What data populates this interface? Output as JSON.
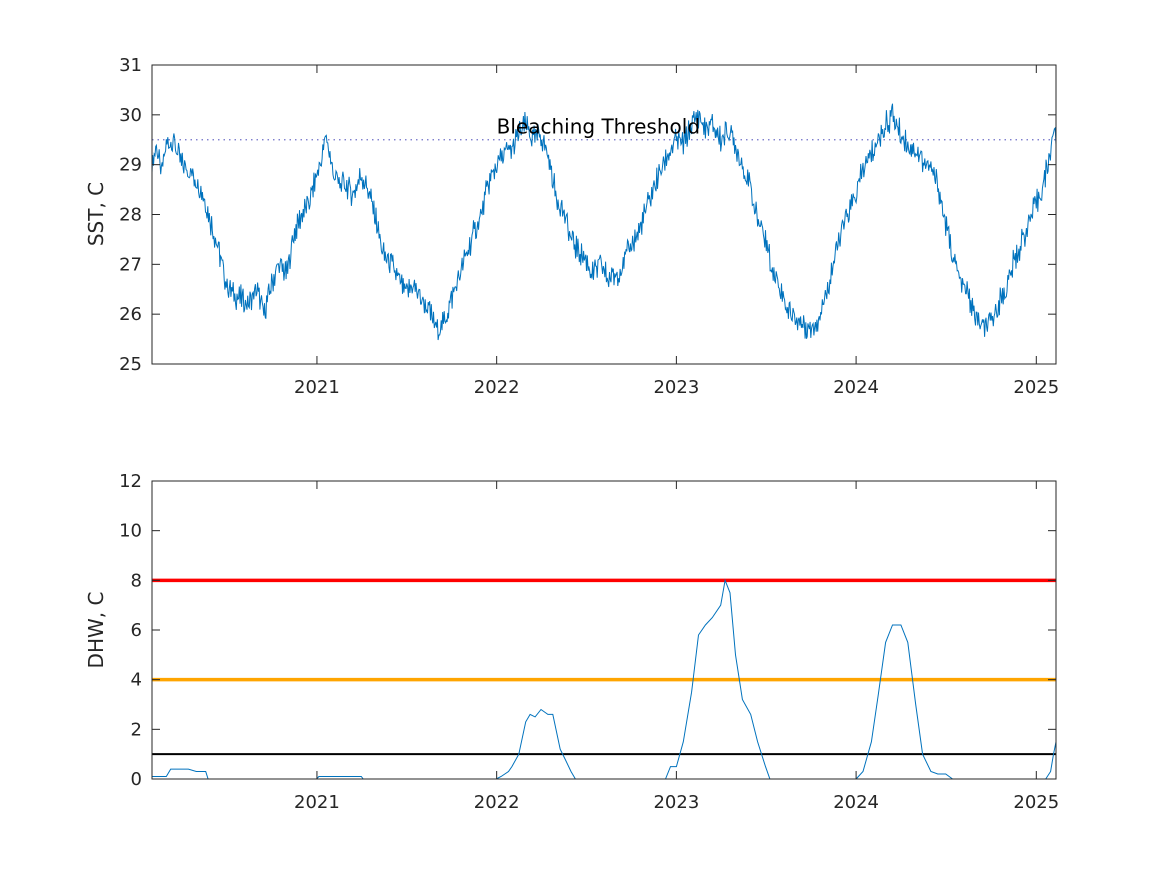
{
  "chart_data": [
    {
      "type": "line",
      "ylabel": "SST, C",
      "xlabel": "",
      "ylim": [
        25,
        31
      ],
      "xlim": [
        "2020-02-01",
        "2025-02-10"
      ],
      "x_ticks": [
        "2021",
        "2022",
        "2023",
        "2024",
        "2025"
      ],
      "y_ticks": [
        "25",
        "26",
        "27",
        "28",
        "29",
        "30",
        "31"
      ],
      "grid": false,
      "colors": {
        "series": "#0072BD",
        "threshold": "#6f6fc8"
      },
      "annotations": [
        {
          "text": "Bleaching Threshold",
          "x": "2022-01-01",
          "y": 29.75
        }
      ],
      "threshold": {
        "value": 29.5,
        "style": "dotted"
      },
      "series": [
        {
          "x": [
            "2020-02-01",
            "2020-02-10",
            "2020-02-20",
            "2020-03-01",
            "2020-03-15",
            "2020-04-01",
            "2020-04-15",
            "2020-05-01",
            "2020-05-15",
            "2020-06-01",
            "2020-06-15",
            "2020-07-01",
            "2020-07-15",
            "2020-08-01",
            "2020-08-15",
            "2020-09-01",
            "2020-09-15",
            "2020-10-01",
            "2020-10-15",
            "2020-11-01",
            "2020-11-15",
            "2020-12-01",
            "2020-12-15",
            "2021-01-01",
            "2021-01-10",
            "2021-01-20",
            "2021-02-01",
            "2021-02-15",
            "2021-03-01",
            "2021-03-15",
            "2021-04-01",
            "2021-04-15",
            "2021-05-01",
            "2021-05-15",
            "2021-06-01",
            "2021-06-15",
            "2021-07-01",
            "2021-07-15",
            "2021-08-01",
            "2021-08-15",
            "2021-09-01",
            "2021-09-15",
            "2021-10-01",
            "2021-10-15",
            "2021-11-01",
            "2021-11-15",
            "2021-12-01",
            "2021-12-15",
            "2022-01-01",
            "2022-01-15",
            "2022-02-01",
            "2022-02-15",
            "2022-03-01",
            "2022-03-15",
            "2022-04-01",
            "2022-04-15",
            "2022-05-01",
            "2022-05-15",
            "2022-06-01",
            "2022-06-15",
            "2022-07-01",
            "2022-07-15",
            "2022-08-01",
            "2022-08-15",
            "2022-09-01",
            "2022-09-15",
            "2022-10-01",
            "2022-10-15",
            "2022-11-01",
            "2022-11-15",
            "2022-12-01",
            "2022-12-15",
            "2023-01-01",
            "2023-01-15",
            "2023-02-01",
            "2023-02-15",
            "2023-03-01",
            "2023-03-15",
            "2023-04-01",
            "2023-04-15",
            "2023-05-01",
            "2023-05-15",
            "2023-06-01",
            "2023-06-15",
            "2023-07-01",
            "2023-07-15",
            "2023-08-01",
            "2023-08-15",
            "2023-09-01",
            "2023-09-15",
            "2023-10-01",
            "2023-10-15",
            "2023-11-01",
            "2023-11-15",
            "2023-12-01",
            "2023-12-15",
            "2024-01-01",
            "2024-01-15",
            "2024-02-01",
            "2024-02-15",
            "2024-03-01",
            "2024-03-15",
            "2024-04-01",
            "2024-04-15",
            "2024-05-01",
            "2024-05-15",
            "2024-06-01",
            "2024-06-15",
            "2024-07-01",
            "2024-07-15",
            "2024-08-01",
            "2024-08-15",
            "2024-09-01",
            "2024-09-15",
            "2024-10-01",
            "2024-10-15",
            "2024-11-01",
            "2024-11-15",
            "2024-12-01",
            "2024-12-15",
            "2025-01-01",
            "2025-01-15",
            "2025-01-25",
            "2025-02-05",
            "2025-02-10"
          ],
          "y": [
            29.0,
            29.4,
            28.8,
            29.4,
            29.5,
            29.0,
            28.9,
            28.7,
            28.4,
            27.8,
            27.3,
            26.6,
            26.4,
            26.3,
            26.2,
            26.5,
            26.0,
            26.6,
            27.0,
            26.8,
            27.6,
            28.0,
            28.2,
            28.8,
            29.1,
            29.6,
            28.9,
            28.6,
            28.6,
            28.4,
            28.8,
            28.5,
            27.9,
            27.2,
            27.0,
            26.7,
            26.4,
            26.6,
            26.3,
            26.1,
            25.7,
            25.8,
            26.3,
            26.7,
            27.2,
            27.6,
            28.0,
            28.6,
            29.0,
            29.2,
            29.3,
            29.6,
            29.8,
            29.5,
            29.6,
            29.2,
            28.4,
            28.1,
            27.5,
            27.3,
            27.1,
            26.8,
            27.0,
            26.7,
            26.8,
            27.0,
            27.4,
            27.6,
            28.1,
            28.5,
            28.9,
            29.2,
            29.5,
            29.4,
            29.8,
            30.0,
            29.7,
            29.8,
            29.5,
            29.7,
            29.4,
            29.0,
            28.5,
            27.9,
            27.5,
            26.9,
            26.5,
            26.1,
            25.9,
            25.8,
            25.7,
            25.9,
            26.4,
            27.0,
            27.6,
            28.0,
            28.4,
            28.9,
            29.2,
            29.5,
            29.8,
            30.0,
            29.6,
            29.4,
            29.3,
            29.1,
            28.9,
            28.6,
            27.8,
            27.2,
            26.6,
            26.4,
            25.9,
            25.7,
            25.8,
            26.2,
            26.5,
            27.0,
            27.4,
            27.8,
            28.2,
            28.6,
            29.0,
            29.7,
            29.4
          ]
        }
      ]
    },
    {
      "type": "line",
      "ylabel": "DHW, C",
      "xlabel": "",
      "ylim": [
        0,
        12
      ],
      "xlim": [
        "2020-02-01",
        "2025-02-10"
      ],
      "x_ticks": [
        "2021",
        "2022",
        "2023",
        "2024",
        "2025"
      ],
      "y_ticks": [
        "0",
        "2",
        "4",
        "6",
        "8",
        "10",
        "12"
      ],
      "grid": false,
      "reference_lines": [
        {
          "value": 8,
          "color": "#ff0000"
        },
        {
          "value": 4,
          "color": "#ffa500"
        },
        {
          "value": 1,
          "color": "#000000"
        }
      ],
      "colors": {
        "series": "#0072BD"
      },
      "series": [
        {
          "x": [
            "2020-02-01",
            "2020-03-01",
            "2020-03-10",
            "2020-04-15",
            "2020-05-01",
            "2020-05-20",
            "2020-05-25",
            "2020-12-31",
            "2021-01-05",
            "2021-04-01",
            "2021-04-05",
            "2021-12-31",
            "2022-01-10",
            "2022-01-25",
            "2022-02-01",
            "2022-02-15",
            "2022-03-01",
            "2022-03-10",
            "2022-03-20",
            "2022-04-01",
            "2022-04-15",
            "2022-04-25",
            "2022-05-10",
            "2022-05-20",
            "2022-06-01",
            "2022-06-10",
            "2022-06-15",
            "2022-12-10",
            "2022-12-20",
            "2023-01-01",
            "2023-01-15",
            "2023-02-01",
            "2023-02-15",
            "2023-03-01",
            "2023-03-15",
            "2023-04-01",
            "2023-04-10",
            "2023-04-20",
            "2023-05-01",
            "2023-05-15",
            "2023-06-01",
            "2023-06-15",
            "2023-07-01",
            "2023-07-10",
            "2023-07-15",
            "2024-01-01",
            "2024-01-15",
            "2024-02-01",
            "2024-02-15",
            "2024-03-01",
            "2024-03-15",
            "2024-04-01",
            "2024-04-15",
            "2024-05-01",
            "2024-05-15",
            "2024-06-01",
            "2024-06-15",
            "2024-07-01",
            "2024-07-15",
            "2024-08-01",
            "2024-08-10",
            "2025-01-20",
            "2025-01-30",
            "2025-02-05",
            "2025-02-10"
          ],
          "y": [
            0.1,
            0.1,
            0.4,
            0.4,
            0.3,
            0.3,
            0.0,
            0.0,
            0.1,
            0.1,
            0.0,
            0.0,
            0.1,
            0.3,
            0.5,
            1.0,
            2.3,
            2.6,
            2.5,
            2.8,
            2.6,
            2.6,
            1.2,
            0.8,
            0.3,
            0.0,
            0.0,
            0.0,
            0.5,
            0.5,
            1.5,
            3.5,
            5.8,
            6.2,
            6.5,
            7.0,
            8.0,
            7.5,
            5.0,
            3.2,
            2.6,
            1.5,
            0.5,
            0.0,
            0.0,
            0.0,
            0.3,
            1.5,
            3.4,
            5.5,
            6.2,
            6.2,
            5.5,
            3.0,
            1.0,
            0.3,
            0.2,
            0.2,
            0.0,
            0.0,
            0.0,
            0.0,
            0.3,
            1.0,
            1.5
          ]
        }
      ]
    }
  ]
}
